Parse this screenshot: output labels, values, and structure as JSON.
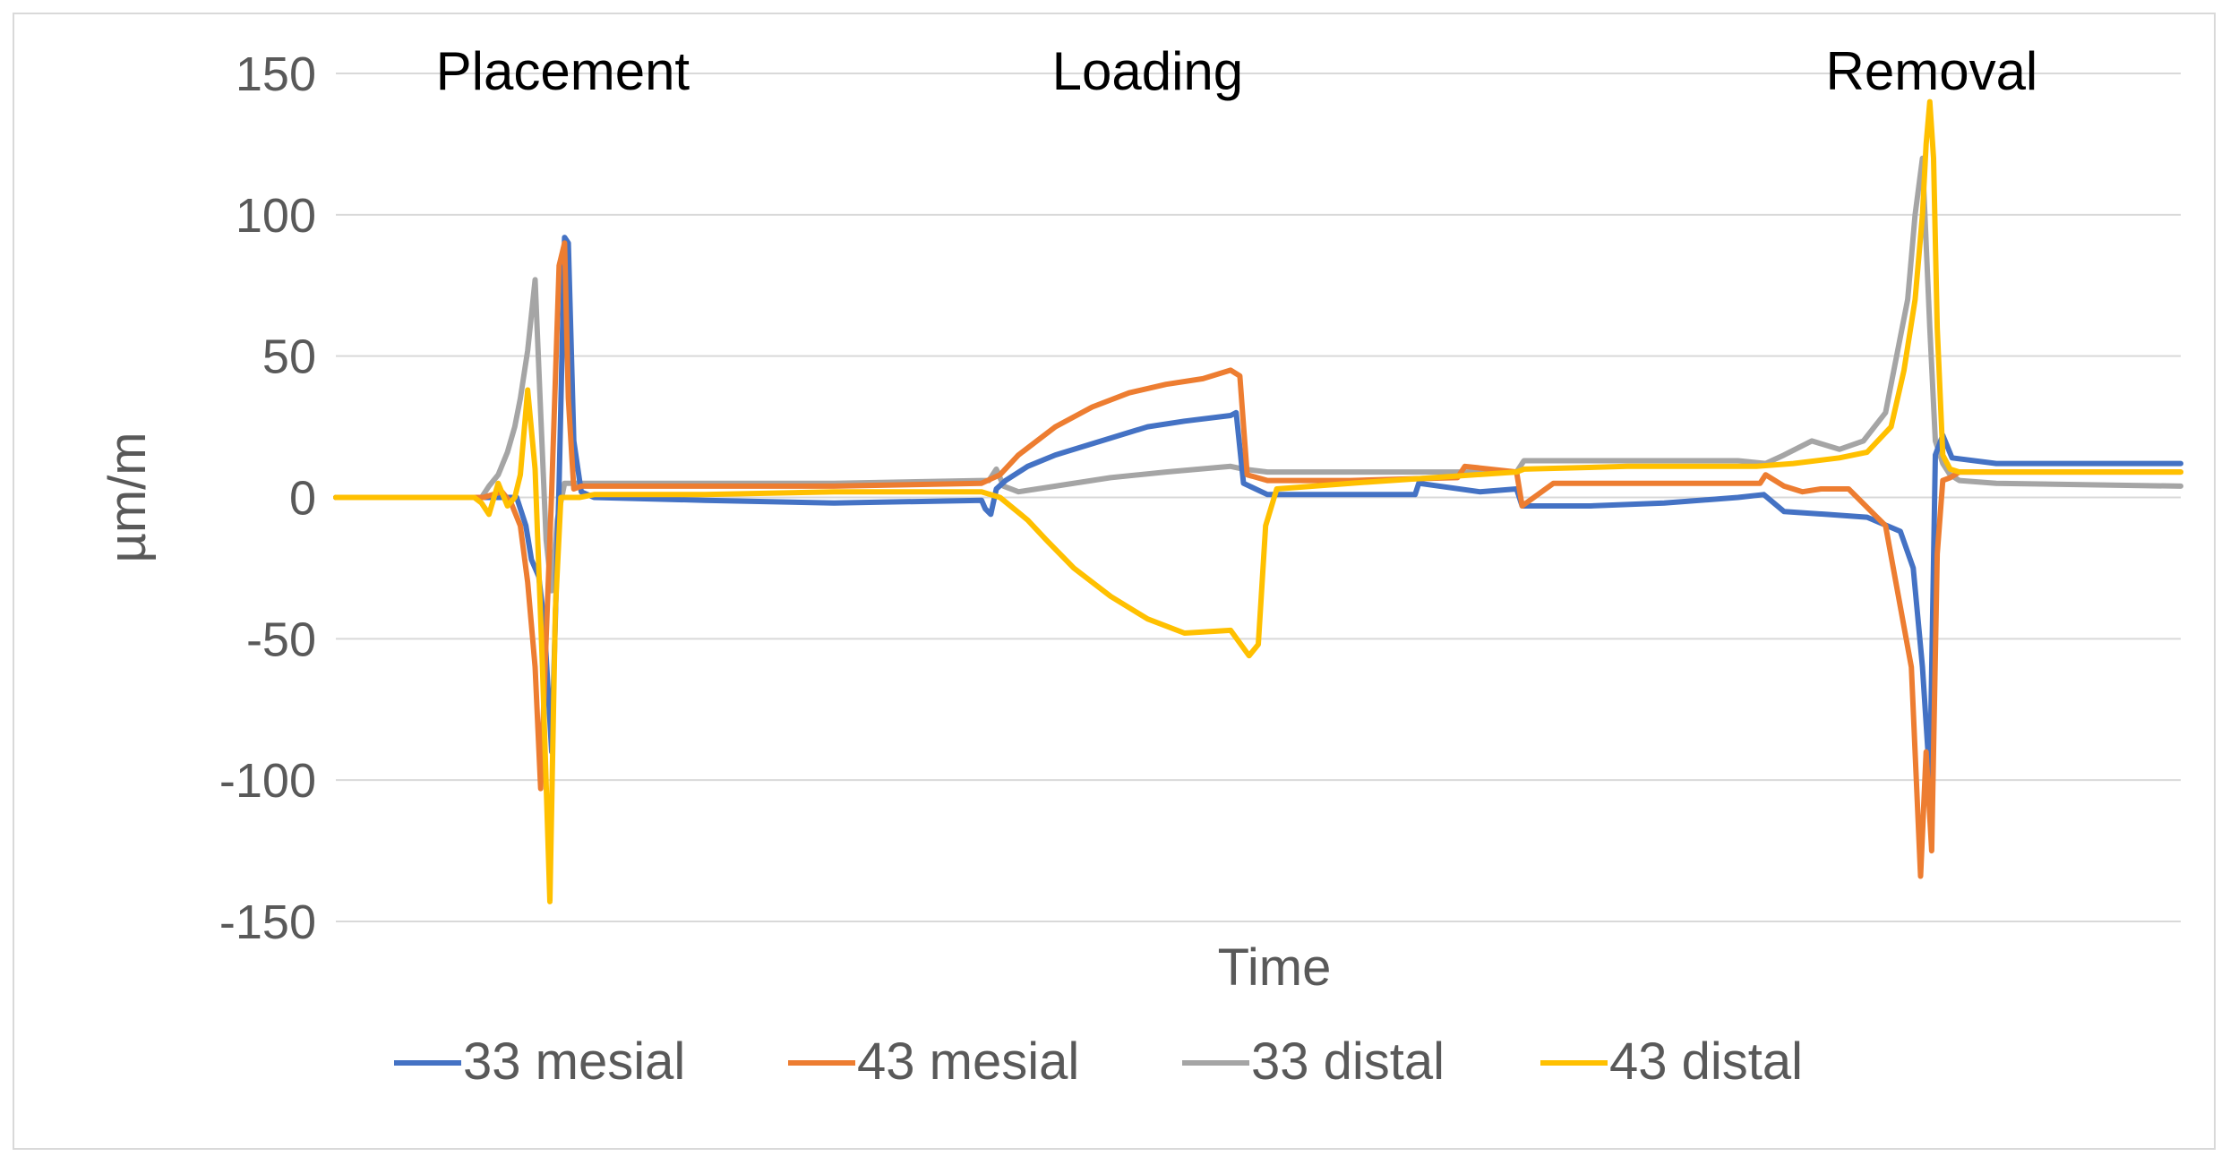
{
  "chart_data": {
    "type": "line",
    "title": "",
    "xlabel": "Time",
    "ylabel": "µm/m",
    "ylim": [
      -150,
      150
    ],
    "yticks": [
      "150",
      "100",
      "50",
      "0",
      "-50",
      "-100",
      "-150"
    ],
    "xlim": [
      0,
      100
    ],
    "grid": true,
    "legend_position": "bottom",
    "annotations": [
      {
        "text": "Placement",
        "x": 12.3
      },
      {
        "text": "Loading",
        "x": 44.0
      },
      {
        "text": "Removal",
        "x": 86.5
      }
    ],
    "series": [
      {
        "name": "33 mesial",
        "color": "#4472C4",
        "x": [
          0,
          5,
          8,
          9.2,
          9.8,
          10.3,
          10.6,
          11.0,
          11.3,
          11.7,
          12.1,
          12.4,
          12.6,
          12.9,
          13.3,
          14,
          20,
          27,
          35,
          35.2,
          35.5,
          35.8,
          36.3,
          37.5,
          39,
          41,
          43,
          44,
          46,
          48.5,
          48.8,
          49.2,
          50.5,
          55,
          58.5,
          58.7,
          62,
          64,
          64.3,
          68,
          72,
          76,
          77.4,
          78.5,
          80.8,
          83,
          84.8,
          85.5,
          86.0,
          86.4,
          86.7,
          87.1,
          87.6,
          90,
          100
        ],
        "y": [
          0,
          0,
          0,
          0,
          0,
          -10,
          -22,
          -28,
          -45,
          -90,
          5,
          92,
          90,
          20,
          2,
          0,
          -1,
          -2,
          -1,
          -4,
          -6,
          3,
          6,
          11,
          15,
          19,
          23,
          25,
          27,
          29,
          30,
          5,
          1,
          1,
          1,
          5,
          2,
          3,
          -3,
          -3,
          -2,
          0,
          1,
          -5,
          -6,
          -7,
          -12,
          -25,
          -60,
          -100,
          15,
          22,
          14,
          12,
          12
        ]
      },
      {
        "name": "43 mesial",
        "color": "#ED7D31",
        "x": [
          0,
          5,
          8,
          9.0,
          9.5,
          10.0,
          10.4,
          10.8,
          11.1,
          11.4,
          11.7,
          12.1,
          12.4,
          12.6,
          12.9,
          13.3,
          14,
          20,
          27,
          35,
          36,
          37,
          39,
          41,
          43,
          45,
          47,
          48.5,
          49.0,
          49.4,
          50.5,
          55,
          60.8,
          61.2,
          64,
          64.3,
          66,
          71,
          77.2,
          77.5,
          78.5,
          79.5,
          80.5,
          82,
          84,
          85.4,
          85.9,
          86.2,
          86.5,
          86.8,
          87.1,
          87.5,
          88,
          90,
          100
        ],
        "y": [
          0,
          0,
          0,
          2,
          -2,
          -10,
          -30,
          -60,
          -103,
          -50,
          2,
          82,
          90,
          35,
          3,
          4,
          4,
          4,
          4,
          5,
          8,
          15,
          25,
          32,
          37,
          40,
          42,
          45,
          43,
          8,
          6,
          6,
          7,
          11,
          9,
          -3,
          5,
          5,
          5,
          8,
          4,
          2,
          3,
          3,
          -10,
          -60,
          -134,
          -90,
          -125,
          -20,
          6,
          7,
          9,
          9,
          9
        ]
      },
      {
        "name": "33 distal",
        "color": "#A5A5A5",
        "x": [
          0,
          5,
          7.9,
          8.3,
          8.8,
          9.3,
          9.7,
          10.0,
          10.4,
          10.8,
          11.1,
          11.4,
          11.7,
          12.0,
          12.4,
          12.7,
          13.1,
          14,
          20,
          27,
          35,
          35.4,
          35.8,
          36.2,
          37,
          39,
          42,
          45,
          48.5,
          49.2,
          50.5,
          55,
          60,
          64,
          64.4,
          70,
          76,
          77.5,
          78.5,
          80,
          81.5,
          82.8,
          84,
          85.2,
          85.6,
          86.0,
          86.4,
          86.7,
          87.1,
          87.5,
          88,
          90,
          100
        ],
        "y": [
          0,
          0,
          0,
          4,
          8,
          16,
          25,
          35,
          52,
          77,
          30,
          -15,
          -33,
          -8,
          5,
          5,
          5,
          5,
          5,
          5,
          6,
          6,
          10,
          4,
          2,
          4,
          7,
          9,
          11,
          10,
          9,
          9,
          9,
          9,
          13,
          13,
          13,
          12,
          15,
          20,
          17,
          20,
          30,
          70,
          100,
          120,
          60,
          20,
          12,
          8,
          6,
          5,
          4
        ]
      },
      {
        "name": "43 distal",
        "color": "#FFC000",
        "x": [
          0,
          5,
          7.5,
          7.9,
          8.3,
          8.8,
          9.3,
          9.7,
          10.0,
          10.4,
          10.8,
          11.2,
          11.6,
          11.9,
          12.2,
          12.5,
          12.8,
          13.2,
          14,
          20,
          27,
          35,
          36,
          37.5,
          38.5,
          40,
          42,
          44,
          46,
          48.5,
          49.5,
          50.0,
          50.4,
          51,
          55,
          64,
          64.4,
          70,
          77,
          79,
          81.5,
          83,
          84.3,
          85.0,
          85.6,
          86.0,
          86.2,
          86.4,
          86.6,
          86.8,
          87.1,
          87.5,
          88,
          100
        ],
        "y": [
          0,
          0,
          0,
          -2,
          -6,
          5,
          -3,
          0,
          8,
          38,
          10,
          -60,
          -143,
          -40,
          0,
          0,
          0,
          0,
          1,
          1,
          2,
          2,
          0,
          -8,
          -15,
          -25,
          -35,
          -43,
          -48,
          -47,
          -56,
          -52,
          -10,
          3,
          5,
          9,
          10,
          11,
          11,
          12,
          14,
          16,
          25,
          45,
          70,
          100,
          125,
          140,
          120,
          60,
          15,
          10,
          9,
          9
        ]
      }
    ]
  }
}
